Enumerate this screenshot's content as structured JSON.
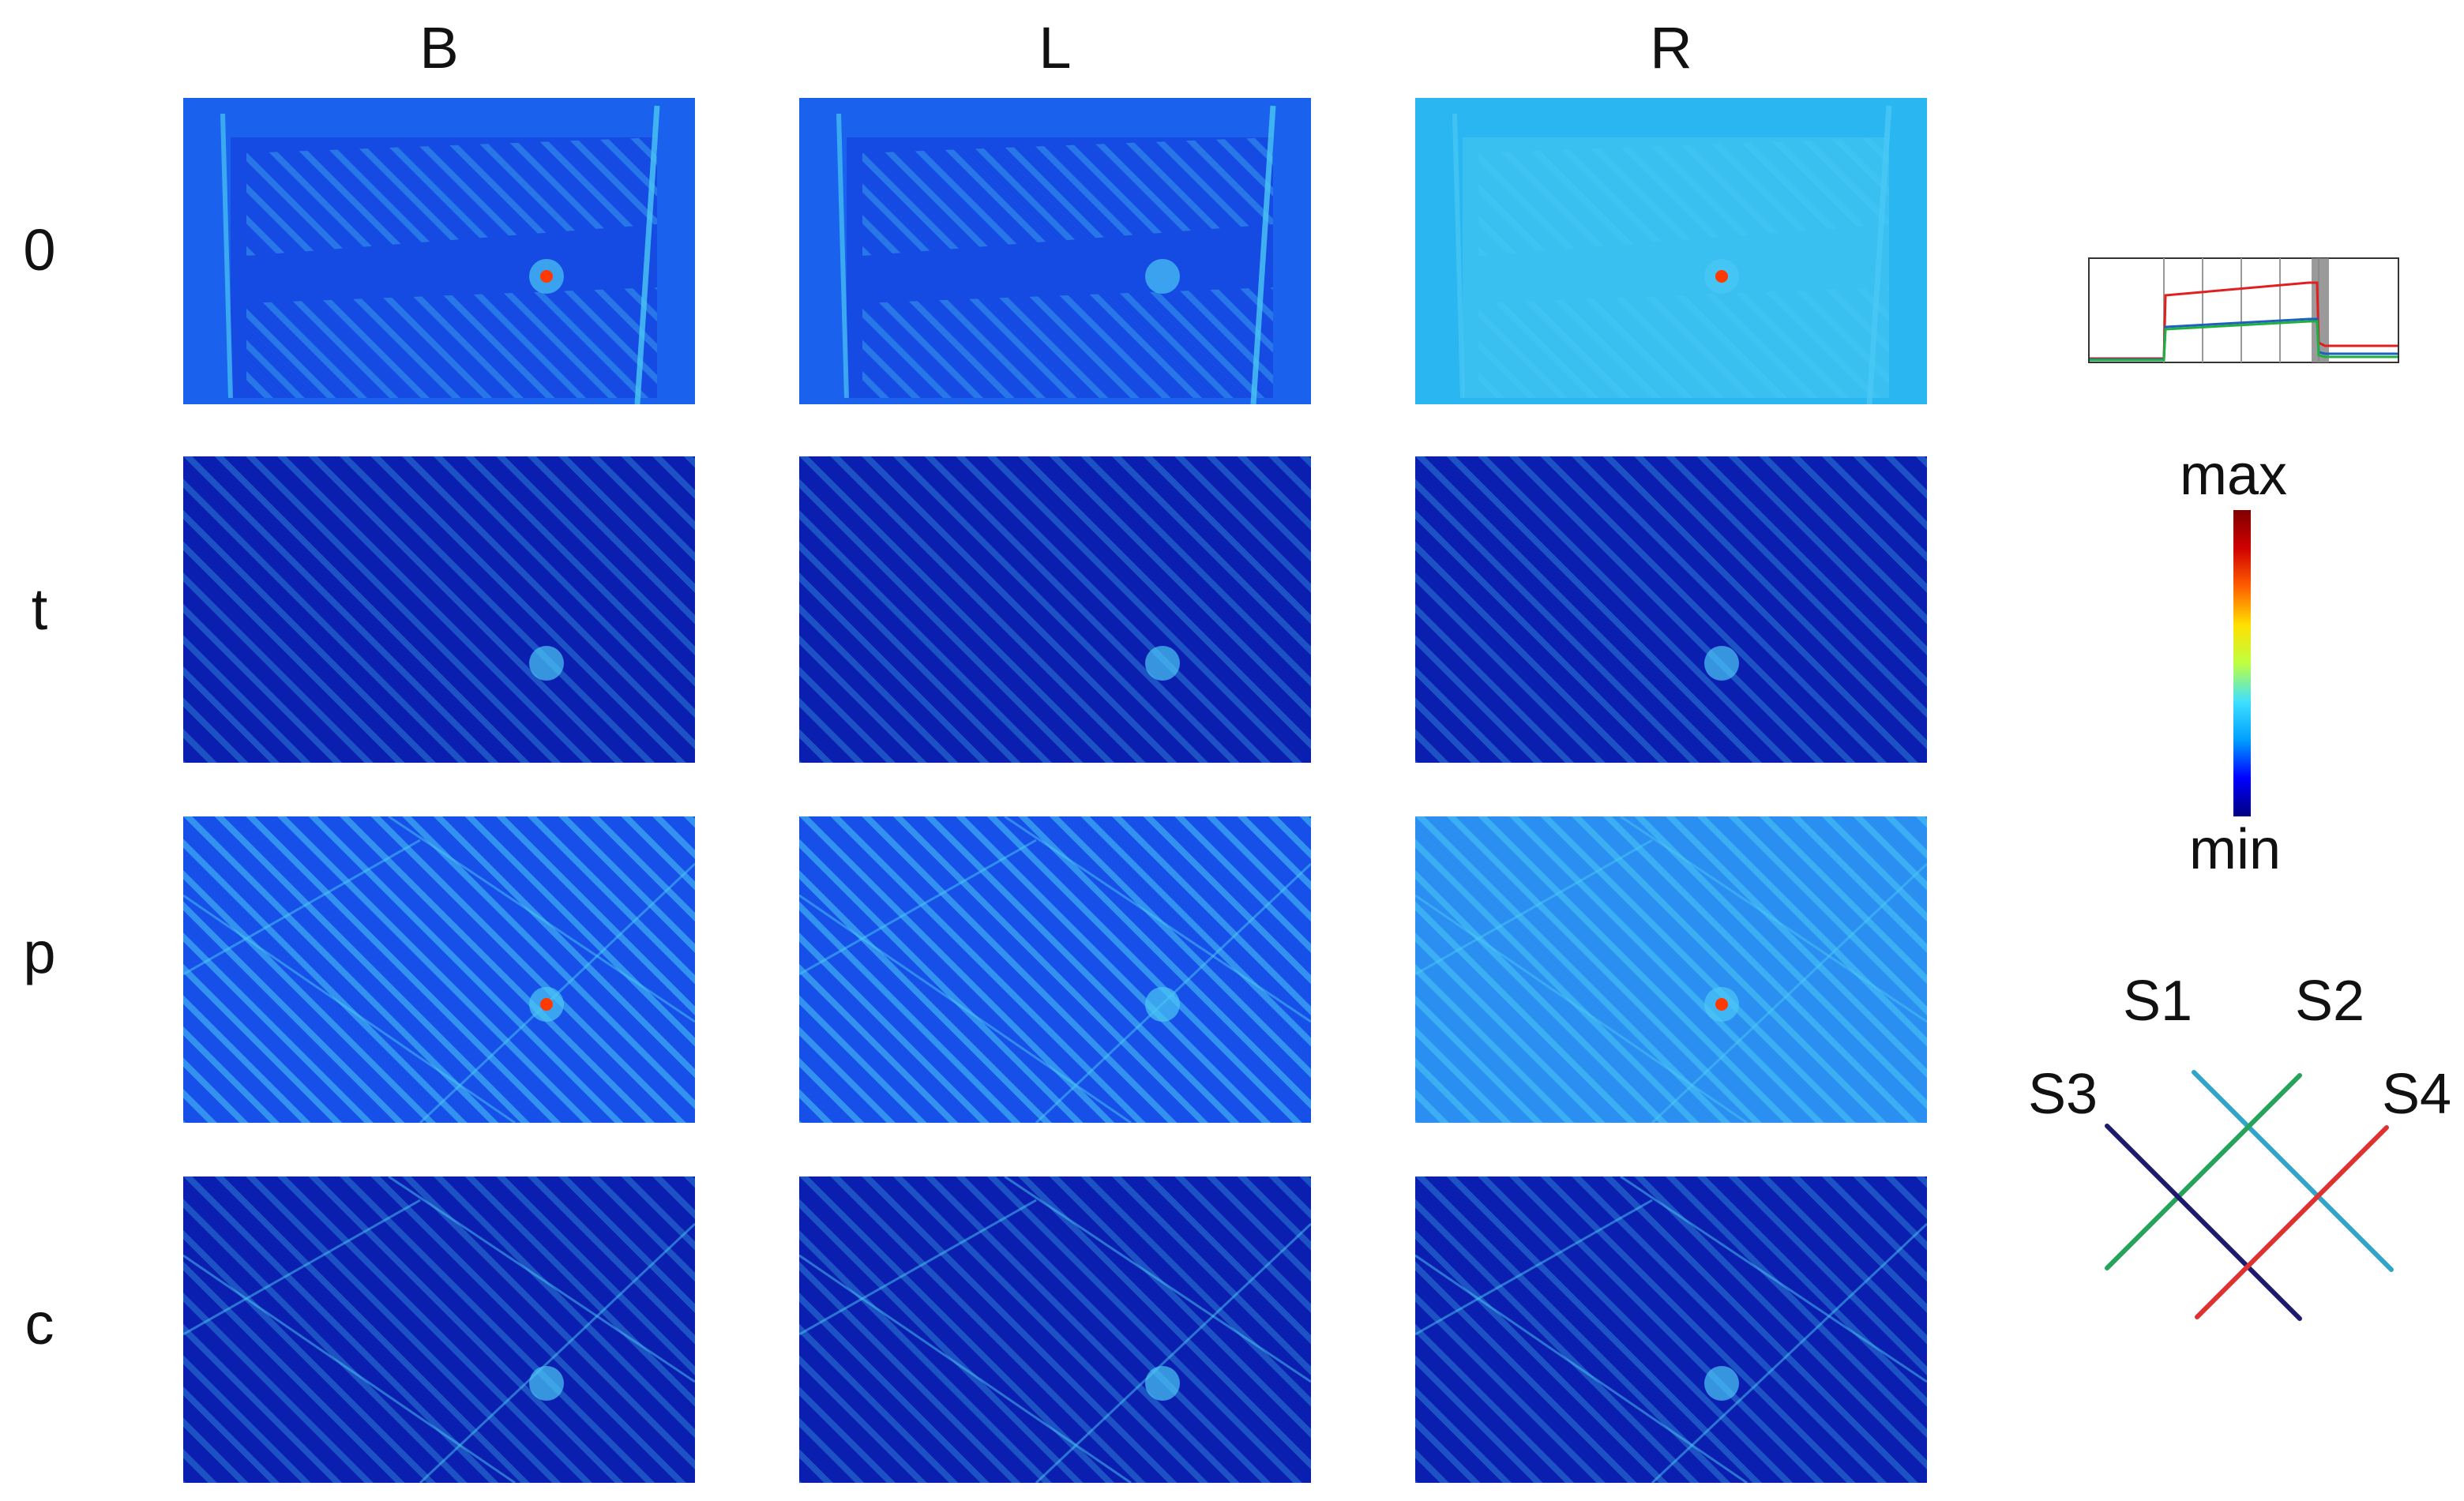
{
  "columns": [
    "B",
    "L",
    "R"
  ],
  "rows": [
    "0",
    "t",
    "p",
    "c"
  ],
  "colorbar": {
    "max_label": "max",
    "min_label": "min",
    "colors": [
      "#00007f",
      "#0000ff",
      "#00a0ff",
      "#3fe0ff",
      "#bfff40",
      "#ffe000",
      "#ff6000",
      "#d00000",
      "#7f0000"
    ]
  },
  "sensors": {
    "labels": [
      "S1",
      "S2",
      "S3",
      "S4"
    ],
    "colors": [
      "#2fa6c9",
      "#24a35a",
      "#1e1b6e",
      "#e03030"
    ]
  },
  "inset": {
    "series_colors": [
      "#e02020",
      "#1f5fc0",
      "#20b040"
    ]
  },
  "colors": {
    "deep": "#0a1fb0",
    "mid": "#1a62ee",
    "light": "#4ac8f5",
    "hot": "#ff3a00"
  }
}
